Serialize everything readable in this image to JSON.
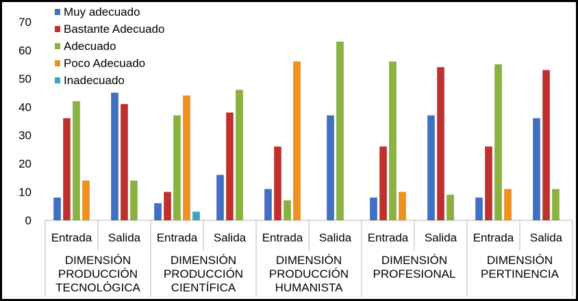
{
  "chart_data": {
    "type": "bar",
    "title": "",
    "xlabel": "",
    "ylabel": "",
    "ylim": [
      0,
      70
    ],
    "yticks": [
      0,
      10,
      20,
      30,
      40,
      50,
      60,
      70
    ],
    "grid": false,
    "legend_position": "top-left",
    "groups": [
      {
        "label_lines": [
          "DIMENSIÓN",
          "PRODUCCIÓN",
          "TECNOLÓGICA"
        ]
      },
      {
        "label_lines": [
          "DIMENSIÓN",
          "PRODUCCIÓN",
          "CIENTÍFICA"
        ]
      },
      {
        "label_lines": [
          "DIMENSIÓN",
          "PRODUCCIÓN",
          "HUMANISTA"
        ]
      },
      {
        "label_lines": [
          "DIMENSIÓN",
          "PROFESIONAL"
        ]
      },
      {
        "label_lines": [
          "DIMENSIÓN",
          "PERTINENCIA"
        ]
      }
    ],
    "categories": [
      "Entrada",
      "Salida",
      "Entrada",
      "Salida",
      "Entrada",
      "Salida",
      "Entrada",
      "Salida",
      "Entrada",
      "Salida"
    ],
    "series": [
      {
        "name": "Muy adecuado",
        "color": "#3f70c4",
        "values": [
          8,
          45,
          6,
          16,
          11,
          37,
          8,
          37,
          8,
          36
        ]
      },
      {
        "name": "Bastante Adecuado",
        "color": "#c0312e",
        "values": [
          36,
          41,
          10,
          38,
          26,
          0,
          26,
          54,
          26,
          53
        ]
      },
      {
        "name": "Adecuado",
        "color": "#8ab33e",
        "values": [
          42,
          14,
          37,
          46,
          7,
          63,
          56,
          9,
          55,
          11
        ]
      },
      {
        "name": "Poco Adecuado",
        "color": "#f0901f",
        "values": [
          14,
          0,
          44,
          0,
          56,
          0,
          10,
          0,
          11,
          0
        ]
      },
      {
        "name": "Inadecuado",
        "color": "#3aa6bf",
        "values": [
          0,
          0,
          3,
          0,
          0,
          0,
          0,
          0,
          0,
          0
        ]
      }
    ]
  }
}
